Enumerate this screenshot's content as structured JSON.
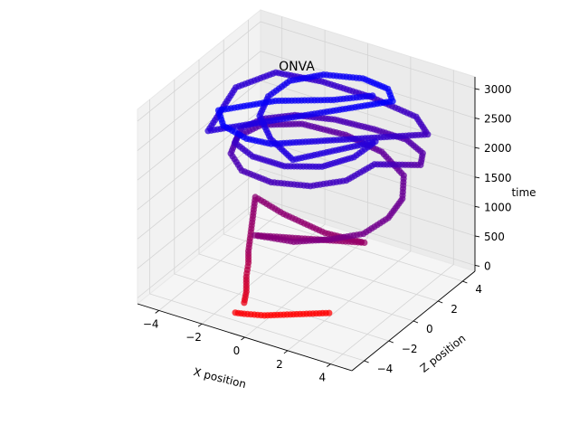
{
  "chart_data": {
    "type": "scatter",
    "subtype": "3d-scatter",
    "title": "ONVA",
    "xlabel": "X position",
    "ylabel": "Z position",
    "zlabel": "time",
    "x_ticks": [
      "−4",
      "−2",
      "0",
      "2",
      "4"
    ],
    "y_ticks": [
      "−4",
      "−2",
      "0",
      "2",
      "4"
    ],
    "z_ticks": [
      "0",
      "500",
      "1000",
      "1500",
      "2000",
      "2500",
      "3000"
    ],
    "xlim": [
      -5,
      5
    ],
    "ylim": [
      -5,
      5
    ],
    "zlim": [
      -100,
      3200
    ],
    "grid": true,
    "legend": "none",
    "color_scale": {
      "low_color": "#ff0000",
      "high_color": "#0000ff",
      "mapped_to": "time"
    },
    "series": [
      {
        "points": [
          [
            -0.6,
            -4.0,
            250
          ],
          [
            -0.5,
            -4.0,
            450
          ],
          [
            -0.5,
            -4.0,
            700
          ],
          [
            -0.4,
            -4.0,
            950
          ],
          [
            -0.4,
            -4.0,
            1150
          ],
          [
            -1.8,
            -1.0,
            1400
          ],
          [
            -0.2,
            -1.5,
            1380
          ],
          [
            1.8,
            -1.6,
            1300
          ],
          [
            3.4,
            -1.2,
            1250
          ],
          [
            -0.1,
            -4.0,
            1450
          ],
          [
            1.6,
            -3.8,
            1500
          ],
          [
            3.0,
            -3.2,
            1600
          ],
          [
            4.1,
            -2.5,
            1700
          ],
          [
            4.4,
            -1.0,
            1750
          ],
          [
            4.2,
            0.5,
            1800
          ],
          [
            3.4,
            2.0,
            1850
          ],
          [
            1.8,
            3.0,
            1900
          ],
          [
            0.0,
            3.2,
            1950
          ],
          [
            -1.8,
            2.8,
            2000
          ],
          [
            -3.0,
            1.6,
            2050
          ],
          [
            -3.2,
            0.0,
            2100
          ],
          [
            -2.6,
            -1.6,
            2150
          ],
          [
            -1.4,
            -2.8,
            2200
          ],
          [
            0.2,
            -3.2,
            2250
          ],
          [
            1.8,
            -2.8,
            2300
          ],
          [
            2.9,
            -1.8,
            2350
          ],
          [
            3.3,
            -0.2,
            2400
          ],
          [
            3.9,
            2.5,
            2000
          ],
          [
            3.6,
            3.2,
            2050
          ],
          [
            2.6,
            3.6,
            2100
          ],
          [
            1.2,
            3.4,
            2150
          ],
          [
            -0.4,
            3.0,
            2200
          ],
          [
            -1.8,
            2.2,
            2250
          ],
          [
            -2.6,
            1.0,
            2300
          ],
          [
            -2.8,
            -0.4,
            2350
          ],
          [
            -2.3,
            -1.8,
            2400
          ],
          [
            -1.0,
            -2.6,
            2450
          ],
          [
            0.6,
            -2.8,
            2500
          ],
          [
            2.0,
            -2.2,
            2550
          ],
          [
            2.8,
            -1.0,
            2600
          ],
          [
            3.0,
            0.4,
            2650
          ],
          [
            1.1,
            -3.0,
            2700
          ],
          [
            -0.4,
            -2.2,
            2750
          ],
          [
            -1.6,
            -1.0,
            2800
          ],
          [
            -2.0,
            0.4,
            2850
          ],
          [
            -1.8,
            1.8,
            2900
          ],
          [
            -0.8,
            2.8,
            2950
          ],
          [
            0.8,
            3.2,
            3000
          ],
          [
            2.2,
            2.8,
            3050
          ],
          [
            3.0,
            1.8,
            3100
          ],
          [
            -3.2,
            -2.4,
            2600
          ],
          [
            -4.2,
            1.6,
            2550
          ],
          [
            -3.6,
            3.8,
            2500
          ],
          [
            -1.8,
            4.4,
            2450
          ],
          [
            0.4,
            4.6,
            2400
          ],
          [
            2.6,
            4.4,
            2350
          ],
          [
            3.6,
            3.6,
            2300
          ],
          [
            0.2,
            -3.2,
            2900
          ],
          [
            -0.6,
            -3.8,
            3000
          ],
          [
            -1.8,
            -3.6,
            3050
          ],
          [
            -2.6,
            -2.6,
            3050
          ],
          [
            -1.2,
            -0.4,
            3000
          ],
          [
            0.6,
            1.2,
            2950
          ],
          [
            1.6,
            2.6,
            2900
          ]
        ]
      },
      {
        "points": [
          [
            -0.9,
            -4.2,
            80
          ],
          [
            -0.6,
            -4.0,
            60
          ],
          [
            -0.4,
            -3.8,
            40
          ],
          [
            -0.2,
            -3.6,
            20
          ],
          [
            0.0,
            -3.4,
            0
          ],
          [
            2.1,
            -1.8,
            10
          ]
        ]
      }
    ]
  }
}
